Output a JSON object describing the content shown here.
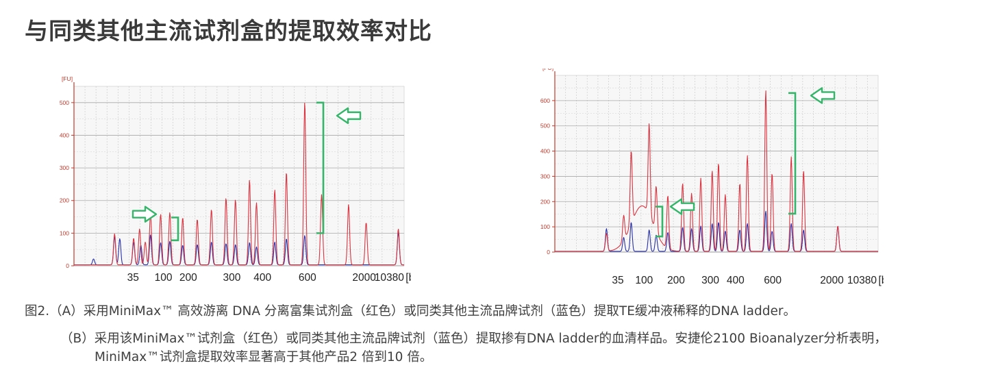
{
  "title": "与同类其他主流试剂盒的提取效率对比",
  "chart_data": [
    {
      "type": "line",
      "panel": "A",
      "ylabel": "[FU]",
      "xlabel": "[bp]",
      "ylim": [
        0,
        550
      ],
      "yticks": [
        0,
        100,
        200,
        300,
        400,
        500
      ],
      "ladder_bp": [
        "35",
        "100",
        "200",
        "300",
        "400",
        "600",
        "2000",
        "10380"
      ],
      "ladder_pos": [
        0.179,
        0.271,
        0.346,
        0.478,
        0.571,
        0.707,
        0.879,
        0.955
      ],
      "peaks_red": [
        [
          0.164,
          95
        ],
        [
          0.241,
          82
        ],
        [
          0.265,
          110
        ],
        [
          0.288,
          70
        ],
        [
          0.309,
          160
        ],
        [
          0.35,
          155
        ],
        [
          0.387,
          160
        ],
        [
          0.439,
          145
        ],
        [
          0.498,
          140
        ],
        [
          0.555,
          170
        ],
        [
          0.614,
          205
        ],
        [
          0.652,
          200
        ],
        [
          0.709,
          260
        ],
        [
          0.737,
          190
        ],
        [
          0.811,
          230
        ],
        [
          0.858,
          285
        ],
        [
          0.932,
          500
        ],
        [
          1.0,
          215
        ],
        [
          1.109,
          185
        ],
        [
          1.18,
          130
        ],
        [
          1.31,
          110
        ]
      ],
      "peaks_blue": [
        [
          0.079,
          18
        ],
        [
          0.164,
          85
        ],
        [
          0.185,
          80
        ],
        [
          0.241,
          70
        ],
        [
          0.27,
          60
        ],
        [
          0.309,
          92
        ],
        [
          0.35,
          68
        ],
        [
          0.387,
          72
        ],
        [
          0.439,
          60
        ],
        [
          0.498,
          62
        ],
        [
          0.555,
          70
        ],
        [
          0.614,
          65
        ],
        [
          0.652,
          62
        ],
        [
          0.709,
          68
        ],
        [
          0.737,
          55
        ],
        [
          0.811,
          70
        ],
        [
          0.858,
          80
        ],
        [
          0.932,
          90
        ],
        [
          1.31,
          100
        ]
      ],
      "annotations": [
        {
          "type": "bracket",
          "y_from": 100,
          "y_to": 500
        },
        {
          "type": "bracket",
          "y_from": 80,
          "y_to": 145
        },
        {
          "type": "arrow"
        },
        {
          "type": "arrow"
        }
      ]
    },
    {
      "type": "line",
      "panel": "B",
      "ylabel": "[FU]",
      "xlabel": "[bp]",
      "ylim": [
        0,
        700
      ],
      "yticks": [
        0,
        100,
        200,
        300,
        400,
        500,
        600
      ],
      "ladder_bp": [
        "35",
        "100",
        "200",
        "300",
        "400",
        "600",
        "2000",
        "10380"
      ],
      "ladder_pos": [
        0.195,
        0.276,
        0.375,
        0.481,
        0.559,
        0.674,
        0.857,
        0.95
      ],
      "peaks_red": [
        [
          0.213,
          70
        ],
        [
          0.284,
          100
        ],
        [
          0.315,
          290
        ],
        [
          0.389,
          360
        ],
        [
          0.418,
          180
        ],
        [
          0.466,
          210
        ],
        [
          0.527,
          270
        ],
        [
          0.564,
          230
        ],
        [
          0.602,
          290
        ],
        [
          0.649,
          320
        ],
        [
          0.675,
          350
        ],
        [
          0.703,
          225
        ],
        [
          0.763,
          270
        ],
        [
          0.794,
          380
        ],
        [
          0.87,
          640
        ],
        [
          0.896,
          310
        ],
        [
          0.975,
          375
        ],
        [
          1.026,
          320
        ],
        [
          1.167,
          100
        ]
      ],
      "broad_red": {
        "center": 0.36,
        "height": 180
      },
      "peaks_blue": [
        [
          0.213,
          90
        ],
        [
          0.284,
          55
        ],
        [
          0.315,
          115
        ],
        [
          0.389,
          85
        ],
        [
          0.418,
          65
        ],
        [
          0.466,
          75
        ],
        [
          0.527,
          95
        ],
        [
          0.564,
          90
        ],
        [
          0.602,
          100
        ],
        [
          0.649,
          110
        ],
        [
          0.675,
          115
        ],
        [
          0.703,
          80
        ],
        [
          0.763,
          85
        ],
        [
          0.794,
          110
        ],
        [
          0.87,
          160
        ],
        [
          0.896,
          80
        ],
        [
          0.975,
          110
        ],
        [
          1.026,
          85
        ],
        [
          1.167,
          100
        ]
      ],
      "annotations": [
        {
          "type": "bracket",
          "y_from": 150,
          "y_to": 630
        },
        {
          "type": "bracket",
          "y_from": 60,
          "y_to": 180
        },
        {
          "type": "arrow"
        },
        {
          "type": "arrow"
        }
      ]
    }
  ],
  "captions": {
    "a": "图2.（A）采用MiniMax™ 高效游离 DNA 分离富集试剂盒（红色）或同类其他主流品牌试剂（蓝色）提取TE缓冲液稀释的DNA ladder。",
    "b1": "（B）采用该MiniMax™试剂盒（红色）或同类其他主流品牌试剂（蓝色）提取掺有DNA ladder的血清样品。安捷伦2100 Bioanalyzer分析表明，",
    "b2": "MiniMax™试剂盒提取效率显著高于其他产品2 倍到10 倍。"
  },
  "colors": {
    "red": "#d9333f",
    "blue": "#2630a8",
    "green": "#35b56a",
    "axis": "#c0392b"
  }
}
